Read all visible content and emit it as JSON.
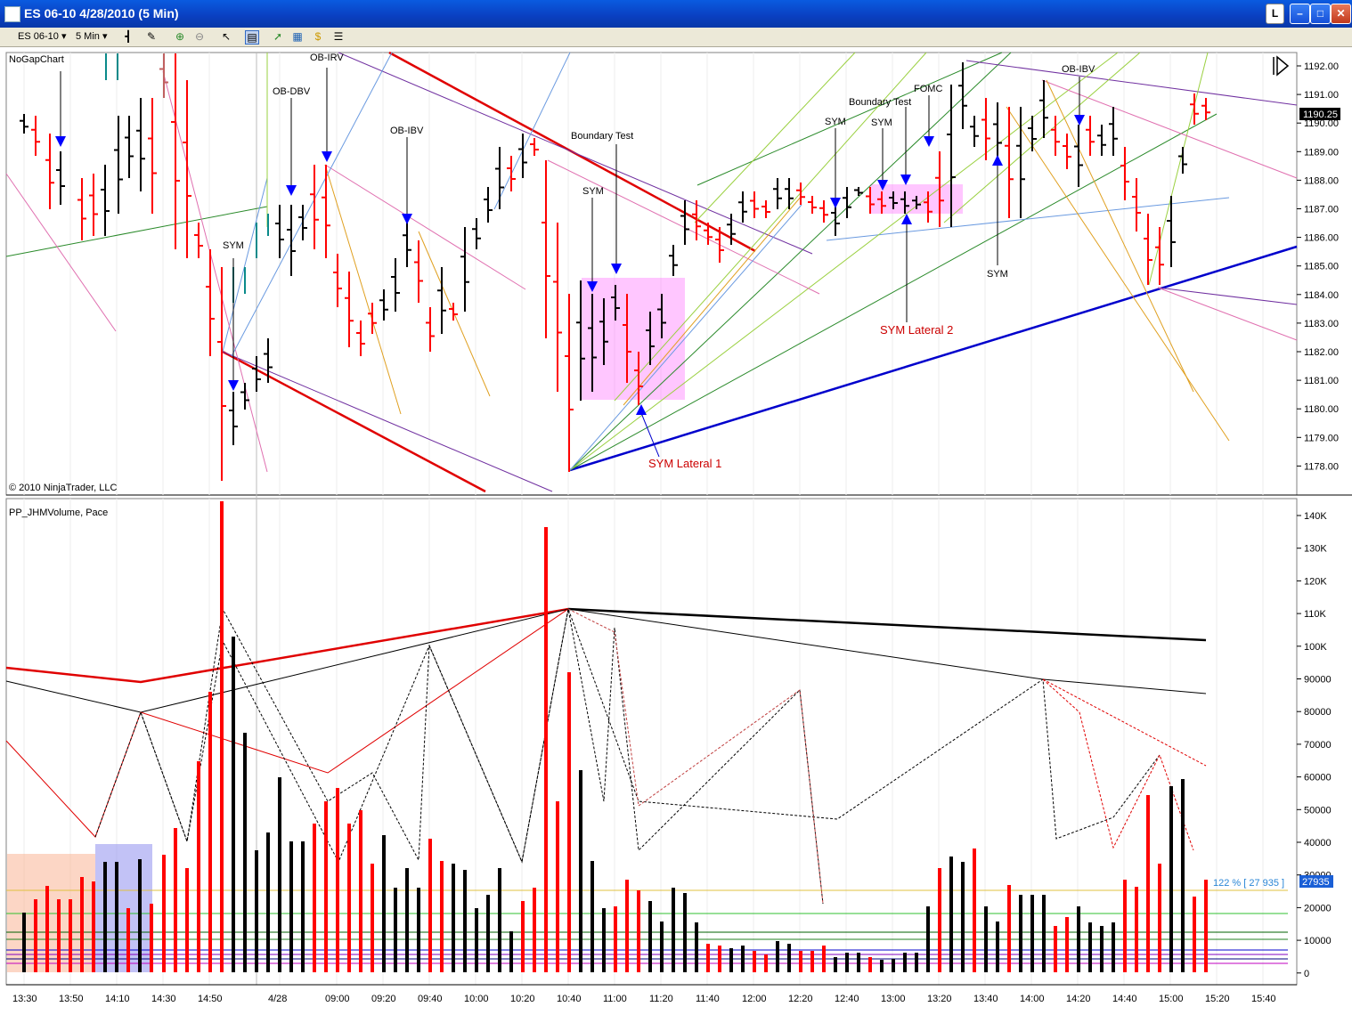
{
  "window": {
    "title": "ES 06-10  4/28/2010 (5 Min)",
    "btn_l": "L",
    "btn_min": "–",
    "btn_max": "□",
    "btn_close": "✕"
  },
  "toolbar": {
    "instrument": "ES 06-10",
    "interval": "5 Min",
    "icons": [
      "bar-type-icon",
      "pencil-icon",
      "zoom-in-icon",
      "zoom-out-icon",
      "cursor-icon",
      "properties-icon",
      "strategy-icon",
      "chart-trader-icon",
      "dollar-icon",
      "data-box-icon"
    ]
  },
  "price_panel": {
    "name": "NoGapChart",
    "copyright": "© 2010 NinjaTrader, LLC",
    "current_price": "1190.25",
    "y_ticks": [
      "1192.00",
      "1191.00",
      "1190.00",
      "1189.00",
      "1188.00",
      "1187.00",
      "1186.00",
      "1185.00",
      "1184.00",
      "1183.00",
      "1182.00",
      "1181.00",
      "1180.00",
      "1179.00",
      "1178.00"
    ],
    "annotations": [
      "OB-IRV",
      "OB-DBV",
      "OB-IBV",
      "SYM",
      "Boundary Test",
      "SYM",
      "SYM",
      "Boundary Test",
      "SYM",
      "FOMC",
      "OB-IBV",
      "SYM",
      "SYM Lateral 2",
      "SYM Lateral 1"
    ]
  },
  "volume_panel": {
    "name": "PP_JHMVolume, Pace",
    "pace_label": "122 % [ 27 935 ]",
    "pace_value": "27935",
    "y_ticks": [
      "140K",
      "130K",
      "120K",
      "110K",
      "100K",
      "90000",
      "80000",
      "70000",
      "60000",
      "50000",
      "40000",
      "30000",
      "20000",
      "10000",
      "0"
    ]
  },
  "x_axis": {
    "ticks": [
      "13:30",
      "13:50",
      "14:10",
      "14:30",
      "14:50",
      "4/28",
      "09:00",
      "09:20",
      "09:40",
      "10:00",
      "10:20",
      "10:40",
      "11:00",
      "11:20",
      "11:40",
      "12:00",
      "12:20",
      "12:40",
      "13:00",
      "13:20",
      "13:40",
      "14:00",
      "14:20",
      "14:40",
      "15:00",
      "15:20",
      "15:40"
    ]
  },
  "colors": {
    "up_bar": "#000000",
    "down_bar": "#ff0000",
    "arrow": "#0000ff",
    "highlight": "#ff80ff",
    "trend_blue": "#0000cc",
    "trend_red": "#e00000"
  }
}
